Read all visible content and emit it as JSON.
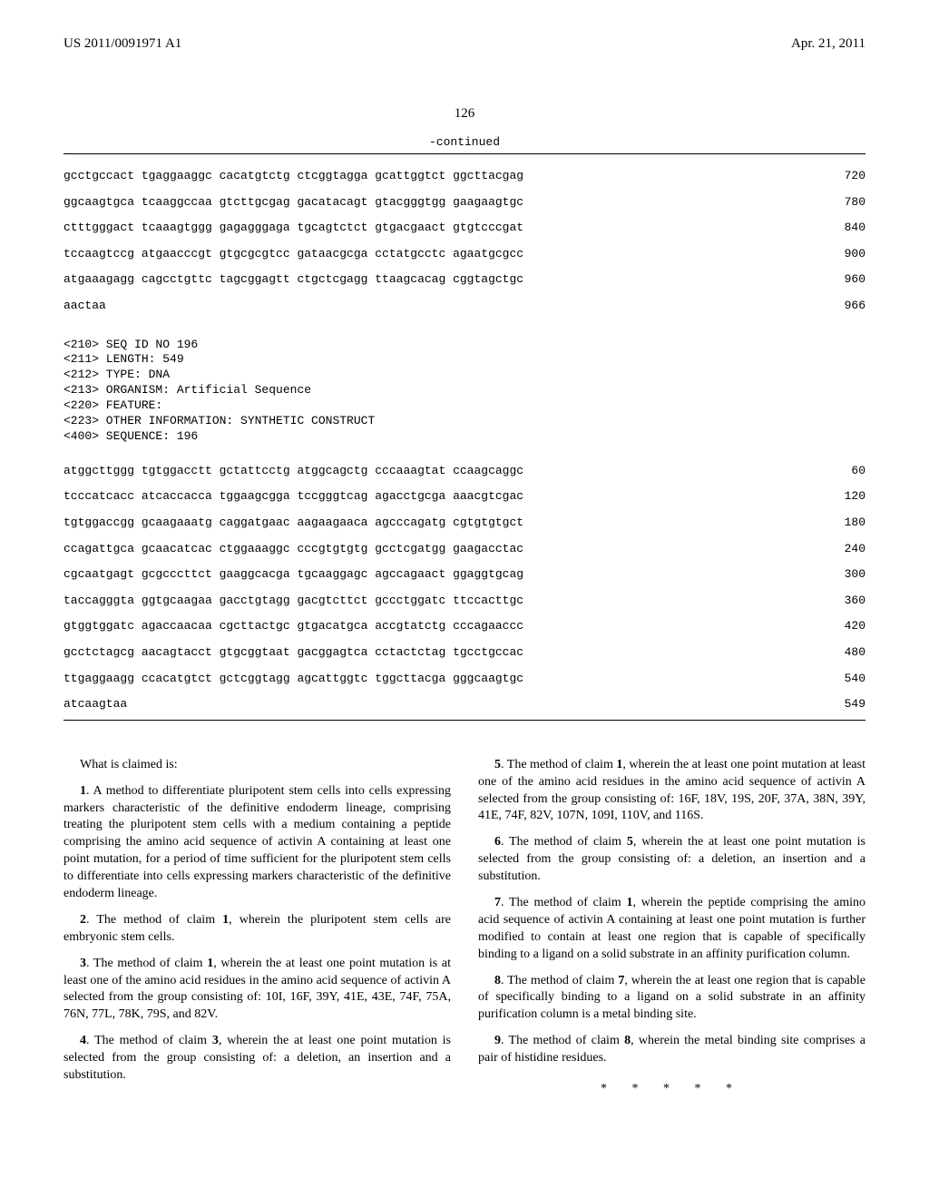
{
  "header": {
    "doc_id": "US 2011/0091971 A1",
    "date": "Apr. 21, 2011"
  },
  "page_number": "126",
  "continued_label": "-continued",
  "seq1": {
    "rows": [
      {
        "t": "gcctgccact tgaggaaggc cacatgtctg ctcggtagga gcattggtct ggcttacgag",
        "n": "720"
      },
      {
        "t": "ggcaagtgca tcaaggccaa gtcttgcgag gacatacagt gtacgggtgg gaagaagtgc",
        "n": "780"
      },
      {
        "t": "ctttgggact tcaaagtggg gagagggaga tgcagtctct gtgacgaact gtgtcccgat",
        "n": "840"
      },
      {
        "t": "tccaagtccg atgaacccgt gtgcgcgtcc gataacgcga cctatgcctc agaatgcgcc",
        "n": "900"
      },
      {
        "t": "atgaaagagg cagcctgttc tagcggagtt ctgctcgagg ttaagcacag cggtagctgc",
        "n": "960"
      },
      {
        "t": "aactaa",
        "n": "966"
      }
    ]
  },
  "seq_meta": {
    "lines": [
      "<210> SEQ ID NO 196",
      "<211> LENGTH: 549",
      "<212> TYPE: DNA",
      "<213> ORGANISM: Artificial Sequence",
      "<220> FEATURE:",
      "<223> OTHER INFORMATION: SYNTHETIC CONSTRUCT",
      "",
      "<400> SEQUENCE: 196"
    ]
  },
  "seq2": {
    "rows": [
      {
        "t": "atggcttggg tgtggacctt gctattcctg atggcagctg cccaaagtat ccaagcaggc",
        "n": "60"
      },
      {
        "t": "tcccatcacc atcaccacca tggaagcgga tccgggtcag agacctgcga aaacgtcgac",
        "n": "120"
      },
      {
        "t": "tgtggaccgg gcaagaaatg caggatgaac aagaagaaca agcccagatg cgtgtgtgct",
        "n": "180"
      },
      {
        "t": "ccagattgca gcaacatcac ctggaaaggc cccgtgtgtg gcctcgatgg gaagacctac",
        "n": "240"
      },
      {
        "t": "cgcaatgagt gcgcccttct gaaggcacga tgcaaggagc agccagaact ggaggtgcag",
        "n": "300"
      },
      {
        "t": "taccagggta ggtgcaagaa gacctgtagg gacgtcttct gccctggatc ttccacttgc",
        "n": "360"
      },
      {
        "t": "gtggtggatc agaccaacaa cgcttactgc gtgacatgca accgtatctg cccagaaccc",
        "n": "420"
      },
      {
        "t": "gcctctagcg aacagtacct gtgcggtaat gacggagtca cctactctag tgcctgccac",
        "n": "480"
      },
      {
        "t": "ttgaggaagg ccacatgtct gctcggtagg agcattggtc tggcttacga gggcaagtgc",
        "n": "540"
      },
      {
        "t": "atcaagtaa",
        "n": "549"
      }
    ]
  },
  "claims": {
    "intro": "What is claimed is:",
    "c1": "1. A method to differentiate pluripotent stem cells into cells expressing markers characteristic of the definitive endoderm lineage, comprising treating the pluripotent stem cells with a medium containing a peptide comprising the amino acid sequence of activin A containing at least one point mutation, for a period of time sufficient for the pluripotent stem cells to differentiate into cells expressing markers characteristic of the definitive endoderm lineage.",
    "c2": "2. The method of claim 1, wherein the pluripotent stem cells are embryonic stem cells.",
    "c3": "3. The method of claim 1, wherein the at least one point mutation is at least one of the amino acid residues in the amino acid sequence of activin A selected from the group consisting of: 10I, 16F, 39Y, 41E, 43E, 74F, 75A, 76N, 77L, 78K, 79S, and 82V.",
    "c4": "4. The method of claim 3, wherein the at least one point mutation is selected from the group consisting of: a deletion, an insertion and a substitution.",
    "c5": "5. The method of claim 1, wherein the at least one point mutation at least one of the amino acid residues in the amino acid sequence of activin A selected from the group consisting of: 16F, 18V, 19S, 20F, 37A, 38N, 39Y, 41E, 74F, 82V, 107N, 109I, 110V, and 116S.",
    "c6": "6. The method of claim 5, wherein the at least one point mutation is selected from the group consisting of: a deletion, an insertion and a substitution.",
    "c7": "7. The method of claim 1, wherein the peptide comprising the amino acid sequence of activin A containing at least one point mutation is further modified to contain at least one region that is capable of specifically binding to a ligand on a solid substrate in an affinity purification column.",
    "c8": "8. The method of claim 7, wherein the at least one region that is capable of specifically binding to a ligand on a solid substrate in an affinity purification column is a metal binding site.",
    "c9": "9. The method of claim 8, wherein the metal binding site comprises a pair of histidine residues."
  },
  "asterisks": "* * * * *"
}
